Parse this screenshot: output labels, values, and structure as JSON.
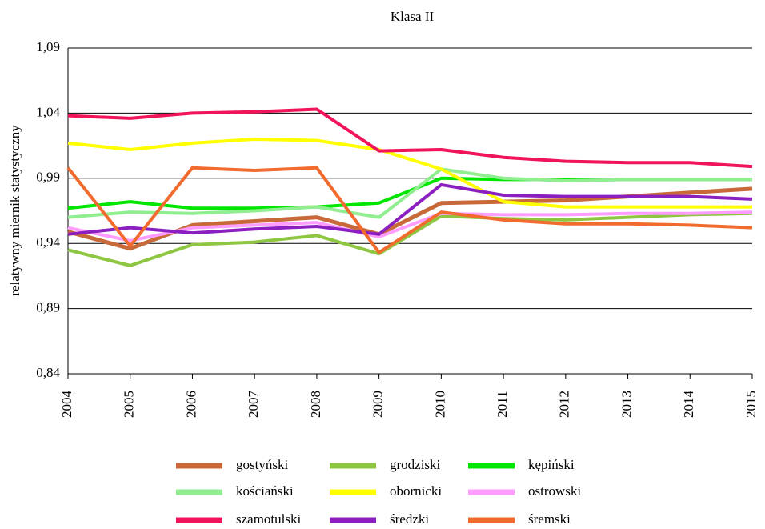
{
  "chart_data": {
    "type": "line",
    "title": "Klasa II",
    "y_label": "relatywny miernik statystyczny",
    "x": [
      2004,
      2005,
      2006,
      2007,
      2008,
      2009,
      2010,
      2011,
      2012,
      2013,
      2014,
      2015
    ],
    "xlim": [
      2004,
      2015
    ],
    "ylim": [
      0.84,
      1.09
    ],
    "yticks": [
      {
        "value": 0.84,
        "label": "0,84"
      },
      {
        "value": 0.89,
        "label": "0,89"
      },
      {
        "value": 0.94,
        "label": "0,94"
      },
      {
        "value": 0.99,
        "label": "0,99"
      },
      {
        "value": 1.04,
        "label": "1,04"
      },
      {
        "value": 1.09,
        "label": "1,09"
      }
    ],
    "grid": true,
    "series": [
      {
        "name": "gostyński",
        "color": "#c8693a",
        "values": [
          0.949,
          0.936,
          0.954,
          0.957,
          0.96,
          0.947,
          0.971,
          0.972,
          0.973,
          0.976,
          0.979,
          0.982
        ]
      },
      {
        "name": "grodziski",
        "color": "#8fc641",
        "values": [
          0.935,
          0.923,
          0.939,
          0.941,
          0.946,
          0.932,
          0.961,
          0.959,
          0.958,
          0.96,
          0.962,
          0.963
        ]
      },
      {
        "name": "kępiński",
        "color": "#00e600",
        "values": [
          0.967,
          0.972,
          0.967,
          0.967,
          0.968,
          0.971,
          0.99,
          0.989,
          0.989,
          0.989,
          0.989,
          0.989
        ]
      },
      {
        "name": "kościański",
        "color": "#90ee90",
        "values": [
          0.96,
          0.964,
          0.963,
          0.965,
          0.968,
          0.96,
          0.997,
          0.99,
          0.988,
          0.989,
          0.989,
          0.989
        ]
      },
      {
        "name": "obornicki",
        "color": "#ffff00",
        "values": [
          1.017,
          1.012,
          1.017,
          1.02,
          1.019,
          1.012,
          0.997,
          0.972,
          0.968,
          0.968,
          0.968,
          0.968
        ]
      },
      {
        "name": "ostrowski",
        "color": "#ff9cff",
        "values": [
          0.952,
          0.942,
          0.952,
          0.954,
          0.956,
          0.945,
          0.963,
          0.962,
          0.962,
          0.963,
          0.963,
          0.964
        ]
      },
      {
        "name": "szamotulski",
        "color": "#f0145a",
        "values": [
          1.038,
          1.036,
          1.04,
          1.041,
          1.043,
          1.011,
          1.012,
          1.006,
          1.003,
          1.002,
          1.002,
          0.999
        ]
      },
      {
        "name": "średzki",
        "color": "#8b1fc0",
        "values": [
          0.947,
          0.952,
          0.948,
          0.951,
          0.953,
          0.947,
          0.985,
          0.977,
          0.976,
          0.976,
          0.976,
          0.974
        ]
      },
      {
        "name": "śremski",
        "color": "#f26b2e",
        "values": [
          0.998,
          0.938,
          0.998,
          0.996,
          0.998,
          0.933,
          0.964,
          0.958,
          0.955,
          0.955,
          0.954,
          0.952
        ]
      }
    ]
  }
}
